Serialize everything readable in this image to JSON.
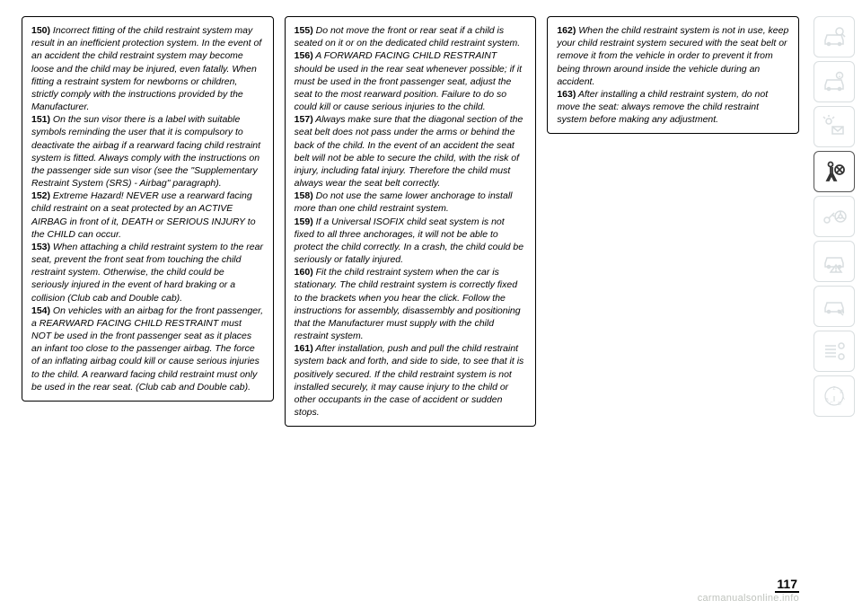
{
  "page_number": "117",
  "watermark": "carmanualsonline.info",
  "columns": [
    {
      "entries": [
        {
          "num": "150)",
          "text": " Incorrect fitting of the child restraint system may result in an inefficient protection system. In the event of an accident the child restraint system may become loose and the child may be injured, even fatally. When fitting a restraint system for newborns or children, strictly comply with the instructions provided by the Manufacturer."
        },
        {
          "num": "151)",
          "text": " On the sun visor there is a label with suitable symbols reminding the user that it is compulsory to deactivate the airbag if a rearward facing child restraint system is fitted. Always comply with the instructions on the passenger side sun visor (see the \"Supplementary Restraint System (SRS) - Airbag\" paragraph)."
        },
        {
          "num": "152)",
          "text": " Extreme Hazard! NEVER use a rearward facing child restraint on a seat protected by an ACTIVE AIRBAG in front of it, DEATH or SERIOUS INJURY to the CHILD can occur."
        },
        {
          "num": "153)",
          "text": " When attaching a child restraint system to the rear seat, prevent the front seat from touching the child restraint system. Otherwise, the child could be seriously injured in the event of hard braking or a collision (Club cab and Double cab)."
        },
        {
          "num": "154)",
          "text": " On vehicles with an airbag for the front passenger, a REARWARD FACING CHILD RESTRAINT must NOT be used in the front passenger seat as it places an infant too close to the passenger airbag. The force of an inflating airbag could kill or cause serious injuries to the child. A rearward facing child restraint must only be used in the rear seat. (Club cab and Double cab)."
        }
      ]
    },
    {
      "entries": [
        {
          "num": "155)",
          "text": " Do not move the front or rear seat if a child is seated on it or on the dedicated child restraint system."
        },
        {
          "num": "156)",
          "text": " A FORWARD FACING CHILD RESTRAINT should be used in the rear seat whenever possible; if it must be used in the front passenger seat, adjust the seat to the most rearward position. Failure to do so could kill or cause serious injuries to the child."
        },
        {
          "num": "157)",
          "text": " Always make sure that the diagonal section of the seat belt does not pass under the arms or behind the back of the child. In the event of an accident the seat belt will not be able to secure the child, with the risk of injury, including fatal injury. Therefore the child must always wear the seat belt correctly."
        },
        {
          "num": "158)",
          "text": " Do not use the same lower anchorage to install more than one child restraint system."
        },
        {
          "num": "159)",
          "text": " If a Universal ISOFIX child seat system is not fixed to all three anchorages, it will not be able to protect the child correctly. In a crash, the child could be seriously or fatally injured."
        },
        {
          "num": "160)",
          "text": " Fit the child restraint system when the car is stationary. The child restraint system is correctly fixed to the brackets when you hear the click. Follow the instructions for assembly, disassembly and positioning that the Manufacturer must supply with the child restraint system."
        },
        {
          "num": "161)",
          "text": " After installation, push and pull the child restraint system back and forth, and side to side, to see that it is positively secured. If the child restraint system is not installed securely, it may cause injury to the child or other occupants in the case of accident or sudden stops."
        }
      ]
    },
    {
      "entries": [
        {
          "num": "162)",
          "text": " When the child restraint system is not in use, keep your child restraint system secured with the seat belt or remove it from the vehicle in order to prevent it from being thrown around inside the vehicle during an accident."
        },
        {
          "num": "163)",
          "text": " After installing a child restraint system, do not move the seat: always remove the child restraint system before making any adjustment."
        }
      ]
    }
  ],
  "sidebar": {
    "icons": [
      {
        "name": "car-search-icon",
        "active": false
      },
      {
        "name": "car-info-icon",
        "active": false
      },
      {
        "name": "light-mail-icon",
        "active": false
      },
      {
        "name": "airbag-icon",
        "active": true
      },
      {
        "name": "key-wheel-icon",
        "active": false
      },
      {
        "name": "car-warning-icon",
        "active": false
      },
      {
        "name": "car-service-icon",
        "active": false
      },
      {
        "name": "list-gear-icon",
        "active": false
      },
      {
        "name": "gear-selector-icon",
        "active": false
      }
    ]
  }
}
